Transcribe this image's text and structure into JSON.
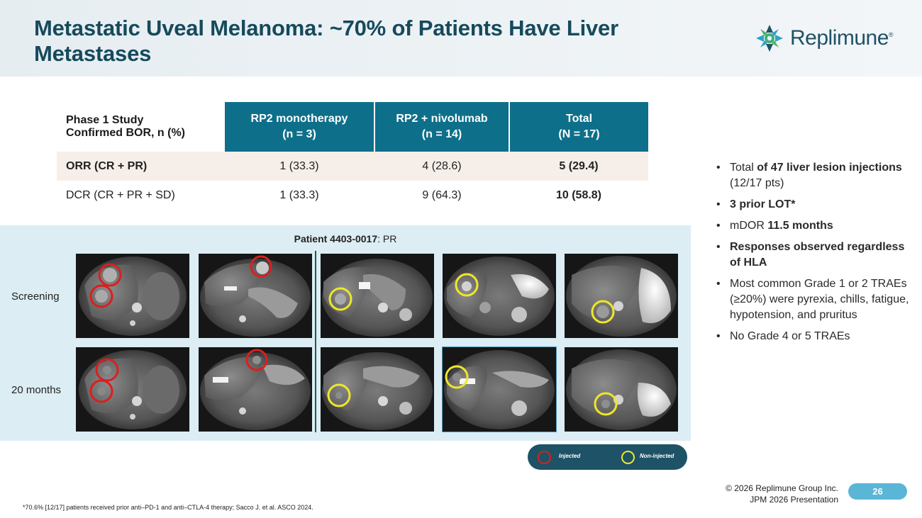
{
  "slide": {
    "title": "Metastatic Uveal Melanoma: ~70% of Patients Have Liver Metastases",
    "brand": "Replimune",
    "brand_mark": "®"
  },
  "table": {
    "header_label_line1": "Phase 1 Study",
    "header_label_line2": "Confirmed BOR, n (%)",
    "columns": [
      {
        "line1": "RP2 monotherapy",
        "line2": "(n = 3)"
      },
      {
        "line1": "RP2 + nivolumab",
        "line2": "(n = 14)"
      },
      {
        "line1": "Total",
        "line2": "(N = 17)"
      }
    ],
    "rows": [
      {
        "label": "ORR (CR + PR)",
        "values": [
          "1 (33.3)",
          "4 (28.6)",
          "5 (29.4)"
        ]
      },
      {
        "label": "DCR (CR + PR + SD)",
        "values": [
          "1 (33.3)",
          "9 (64.3)",
          "10 (58.8)"
        ]
      }
    ]
  },
  "images": {
    "patient_id": "Patient 4403-0017",
    "patient_response": ": PR",
    "row_labels": [
      "Screening",
      "20 months"
    ]
  },
  "bullets": {
    "b1_a": "Total ",
    "b1_b": "of 47 liver lesion injections",
    "b1_c": " (12/17 pts)",
    "b2_a": "3 prior LOT*",
    "b3_a": "mDOR ",
    "b3_b": "11.5 months",
    "b4_a": "Responses observed regardless of HLA",
    "b5": "Most common Grade 1 or 2 TRAEs (≥20%) were pyrexia, chills, fatigue, hypotension, and pruritus",
    "b6": "No Grade 4 or 5 TRAEs"
  },
  "legend": {
    "injected": "Injected",
    "non_injected": "Non-injected",
    "injected_color": "#d9201f",
    "non_injected_color": "#efe62a"
  },
  "footer": {
    "footnote": "*70.6% [12/17] patients received prior anti–PD-1 and anti–CTLA-4 therapy; Sacco J. et al. ASCO 2024.",
    "copyright_line1": "© 2026 Replimune Group Inc.",
    "copyright_line2": "JPM 2026 Presentation",
    "page_number": "26"
  },
  "colors": {
    "title": "#154a5c",
    "table_header": "#0e6f8a",
    "panel_bg": "#dcedf4",
    "page_badge": "#5ab5d6"
  }
}
